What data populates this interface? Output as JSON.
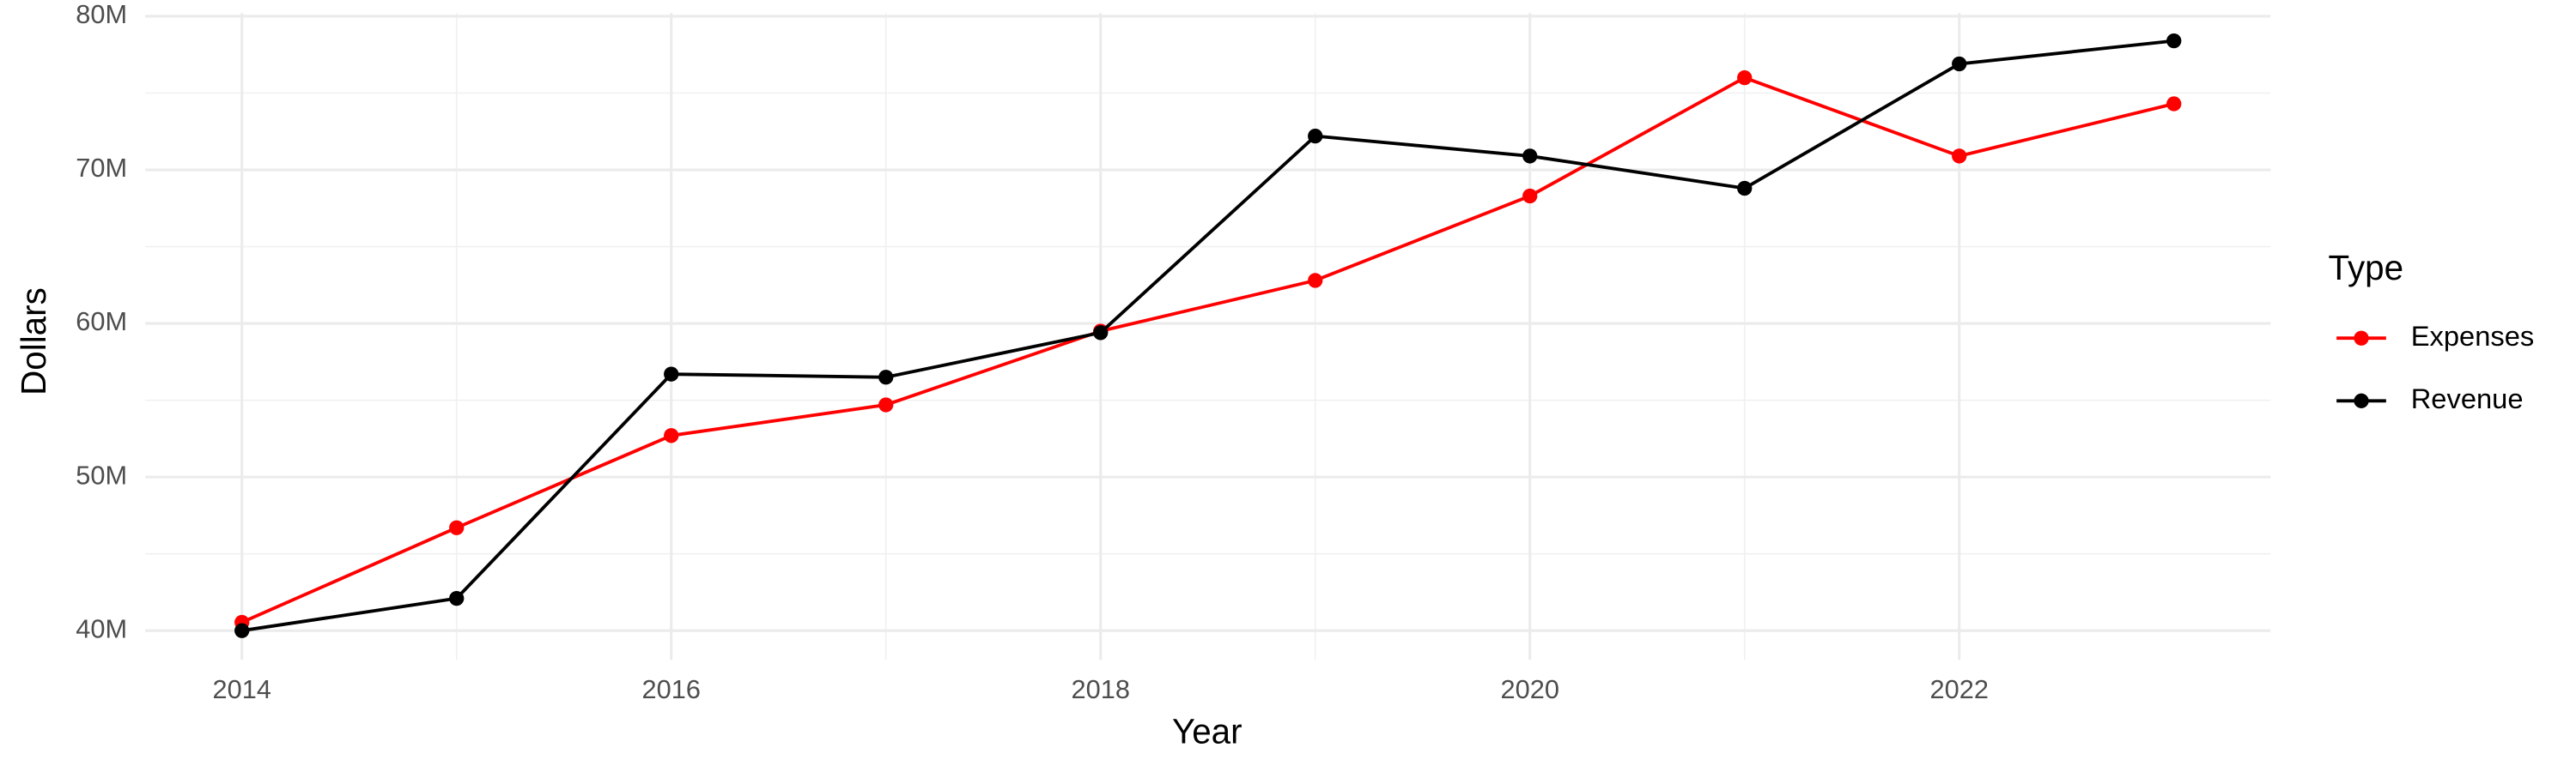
{
  "chart_data": {
    "type": "line",
    "x_label": "Year",
    "y_label": "Dollars",
    "legend_title": "Type",
    "legend_position": "right",
    "grid": true,
    "x": [
      2014,
      2015,
      2016,
      2017,
      2018,
      2019,
      2020,
      2021,
      2022,
      2023
    ],
    "series": [
      {
        "name": "Expenses",
        "color": "#ff0000",
        "values": [
          40540000,
          46700000,
          52700000,
          54700000,
          59500000,
          62800000,
          68300000,
          76000000,
          70900000,
          74300000
        ]
      },
      {
        "name": "Revenue",
        "color": "#000000",
        "values": [
          40000000,
          42100000,
          56700000,
          56500000,
          59400000,
          72200000,
          70900000,
          68800000,
          76900000,
          78400000
        ]
      }
    ],
    "xlim": [
      2013.55,
      2023.45
    ],
    "xticks": [
      2014,
      2016,
      2018,
      2020,
      2022
    ],
    "ylim": [
      38100000,
      80200000
    ],
    "yticks": [
      {
        "value": 40000000,
        "label": "40M"
      },
      {
        "value": 50000000,
        "label": "50M"
      },
      {
        "value": 60000000,
        "label": "60M"
      },
      {
        "value": 70000000,
        "label": "70M"
      },
      {
        "value": 80000000,
        "label": "80M"
      }
    ]
  }
}
